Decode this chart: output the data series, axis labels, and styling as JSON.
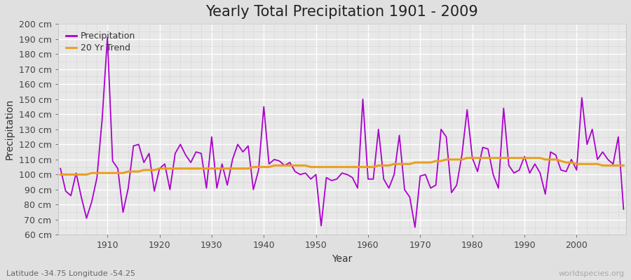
{
  "title": "Yearly Total Precipitation 1901 - 2009",
  "xlabel": "Year",
  "ylabel": "Precipitation",
  "subtitle": "Latitude -34.75 Longitude -54.25",
  "watermark": "worldspecies.org",
  "ylim": [
    60,
    200
  ],
  "ytick_step": 10,
  "years": [
    1901,
    1902,
    1903,
    1904,
    1905,
    1906,
    1907,
    1908,
    1909,
    1910,
    1911,
    1912,
    1913,
    1914,
    1915,
    1916,
    1917,
    1918,
    1919,
    1920,
    1921,
    1922,
    1923,
    1924,
    1925,
    1926,
    1927,
    1928,
    1929,
    1930,
    1931,
    1932,
    1933,
    1934,
    1935,
    1936,
    1937,
    1938,
    1939,
    1940,
    1941,
    1942,
    1943,
    1944,
    1945,
    1946,
    1947,
    1948,
    1949,
    1950,
    1951,
    1952,
    1953,
    1954,
    1955,
    1956,
    1957,
    1958,
    1959,
    1960,
    1961,
    1962,
    1963,
    1964,
    1965,
    1966,
    1967,
    1968,
    1969,
    1970,
    1971,
    1972,
    1973,
    1974,
    1975,
    1976,
    1977,
    1978,
    1979,
    1980,
    1981,
    1982,
    1983,
    1984,
    1985,
    1986,
    1987,
    1988,
    1989,
    1990,
    1991,
    1992,
    1993,
    1994,
    1995,
    1996,
    1997,
    1998,
    1999,
    2000,
    2001,
    2002,
    2003,
    2004,
    2005,
    2006,
    2007,
    2008,
    2009
  ],
  "precip": [
    104,
    89,
    86,
    101,
    85,
    71,
    82,
    98,
    137,
    191,
    109,
    104,
    75,
    91,
    119,
    120,
    108,
    114,
    89,
    104,
    107,
    90,
    114,
    120,
    113,
    108,
    115,
    114,
    91,
    125,
    91,
    107,
    93,
    110,
    120,
    115,
    119,
    90,
    103,
    145,
    107,
    110,
    109,
    106,
    108,
    102,
    100,
    101,
    97,
    100,
    66,
    98,
    96,
    97,
    101,
    100,
    98,
    91,
    150,
    97,
    97,
    130,
    97,
    91,
    100,
    126,
    90,
    85,
    65,
    99,
    100,
    91,
    93,
    130,
    125,
    88,
    93,
    113,
    143,
    111,
    102,
    118,
    117,
    100,
    91,
    144,
    106,
    101,
    103,
    112,
    101,
    107,
    101,
    87,
    115,
    113,
    103,
    102,
    110,
    103,
    151,
    120,
    130,
    110,
    115,
    110,
    107,
    125,
    77
  ],
  "trend": [
    100,
    100,
    100,
    100,
    100,
    100,
    101,
    101,
    101,
    101,
    101,
    101,
    101,
    102,
    102,
    102,
    103,
    103,
    103,
    104,
    104,
    104,
    104,
    104,
    104,
    104,
    104,
    104,
    104,
    104,
    104,
    104,
    104,
    104,
    104,
    104,
    104,
    105,
    105,
    105,
    105,
    106,
    106,
    106,
    106,
    106,
    106,
    106,
    105,
    105,
    105,
    105,
    105,
    105,
    105,
    105,
    105,
    105,
    105,
    105,
    105,
    106,
    106,
    106,
    107,
    107,
    107,
    107,
    108,
    108,
    108,
    108,
    109,
    109,
    110,
    110,
    110,
    110,
    111,
    111,
    111,
    111,
    111,
    111,
    111,
    111,
    111,
    111,
    111,
    111,
    111,
    111,
    111,
    110,
    110,
    110,
    109,
    108,
    108,
    107,
    107,
    107,
    107,
    107,
    106,
    106,
    106,
    106,
    106
  ],
  "precip_color": "#aa00cc",
  "trend_color": "#e8a020",
  "fig_bg_color": "#e0e0e0",
  "plot_bg_color": "#e8e8e8",
  "grid_major_color": "#ffffff",
  "grid_minor_color": "#d8d8d8",
  "title_fontsize": 15,
  "label_fontsize": 10,
  "tick_fontsize": 9,
  "legend_fontsize": 9
}
